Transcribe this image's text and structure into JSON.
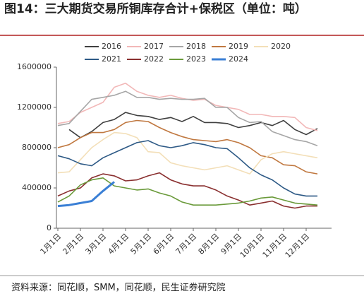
{
  "chart_data": {
    "type": "line",
    "title": "图14：三大期货交易所铜库存合计+保税区（单位：吨）",
    "source": "资料来源：同花顺，SMM，同花顺，民生证券研究院",
    "categories": [
      "1月1日",
      null,
      "2月1日",
      null,
      "3月1日",
      null,
      "4月1日",
      null,
      "5月1日",
      null,
      "6月1日",
      null,
      "7月1日",
      null,
      "8月1日",
      null,
      "9月1日",
      null,
      "10月1日",
      null,
      "11月1日",
      null,
      "12月1日",
      null
    ],
    "ylim": [
      0,
      1600000
    ],
    "yticks": [
      0,
      400000,
      800000,
      1200000,
      1600000
    ],
    "series": [
      {
        "name": "2016",
        "color": "#404040",
        "values": [
          null,
          980000,
          900000,
          960000,
          1050000,
          1080000,
          1150000,
          1120000,
          1110000,
          1080000,
          1100000,
          1060000,
          1110000,
          1050000,
          1050000,
          1040000,
          1000000,
          1020000,
          1050000,
          1020000,
          1070000,
          980000,
          930000,
          990000
        ]
      },
      {
        "name": "2017",
        "color": "#f2b8b8",
        "values": [
          1040000,
          1060000,
          1150000,
          1200000,
          1250000,
          1400000,
          1440000,
          1360000,
          1320000,
          1300000,
          1320000,
          1290000,
          1270000,
          1280000,
          1220000,
          1200000,
          1180000,
          1130000,
          1130000,
          1110000,
          1110000,
          1100000,
          1000000,
          970000
        ]
      },
      {
        "name": "2018",
        "color": "#a6a6a6",
        "values": [
          1020000,
          1040000,
          1160000,
          1280000,
          1300000,
          1320000,
          1360000,
          1300000,
          1300000,
          1280000,
          1290000,
          1280000,
          1280000,
          1290000,
          1200000,
          1200000,
          1100000,
          1050000,
          1060000,
          960000,
          920000,
          880000,
          860000,
          820000
        ]
      },
      {
        "name": "2019",
        "color": "#c07840",
        "values": [
          800000,
          830000,
          900000,
          950000,
          950000,
          980000,
          1050000,
          1070000,
          1060000,
          1000000,
          950000,
          910000,
          880000,
          870000,
          860000,
          880000,
          850000,
          800000,
          720000,
          700000,
          630000,
          620000,
          560000,
          540000
        ]
      },
      {
        "name": "2020",
        "color": "#f3dfb8",
        "values": [
          550000,
          560000,
          680000,
          800000,
          880000,
          950000,
          940000,
          900000,
          760000,
          750000,
          650000,
          620000,
          600000,
          580000,
          600000,
          620000,
          580000,
          540000,
          680000,
          740000,
          760000,
          740000,
          720000,
          700000
        ]
      },
      {
        "name": "2021",
        "color": "#2e5a86",
        "values": [
          720000,
          690000,
          640000,
          620000,
          700000,
          750000,
          800000,
          850000,
          870000,
          820000,
          800000,
          820000,
          850000,
          830000,
          800000,
          790000,
          700000,
          600000,
          530000,
          480000,
          400000,
          340000,
          320000,
          320000
        ]
      },
      {
        "name": "2022",
        "color": "#8a3030",
        "values": [
          320000,
          370000,
          400000,
          500000,
          540000,
          520000,
          470000,
          480000,
          520000,
          550000,
          480000,
          440000,
          420000,
          420000,
          380000,
          320000,
          280000,
          230000,
          250000,
          270000,
          220000,
          200000,
          220000,
          220000
        ]
      },
      {
        "name": "2023",
        "color": "#6a9a3a",
        "values": [
          260000,
          320000,
          430000,
          480000,
          500000,
          420000,
          400000,
          380000,
          390000,
          350000,
          320000,
          260000,
          230000,
          230000,
          230000,
          240000,
          250000,
          270000,
          300000,
          310000,
          280000,
          250000,
          240000,
          230000
        ]
      },
      {
        "name": "2024",
        "color": "#3a7fd5",
        "values": [
          220000,
          230000,
          250000,
          270000,
          370000,
          460000,
          null,
          null,
          null,
          null,
          null,
          null,
          null,
          null,
          null,
          null,
          null,
          null,
          null,
          null,
          null,
          null,
          null,
          null
        ]
      }
    ]
  }
}
